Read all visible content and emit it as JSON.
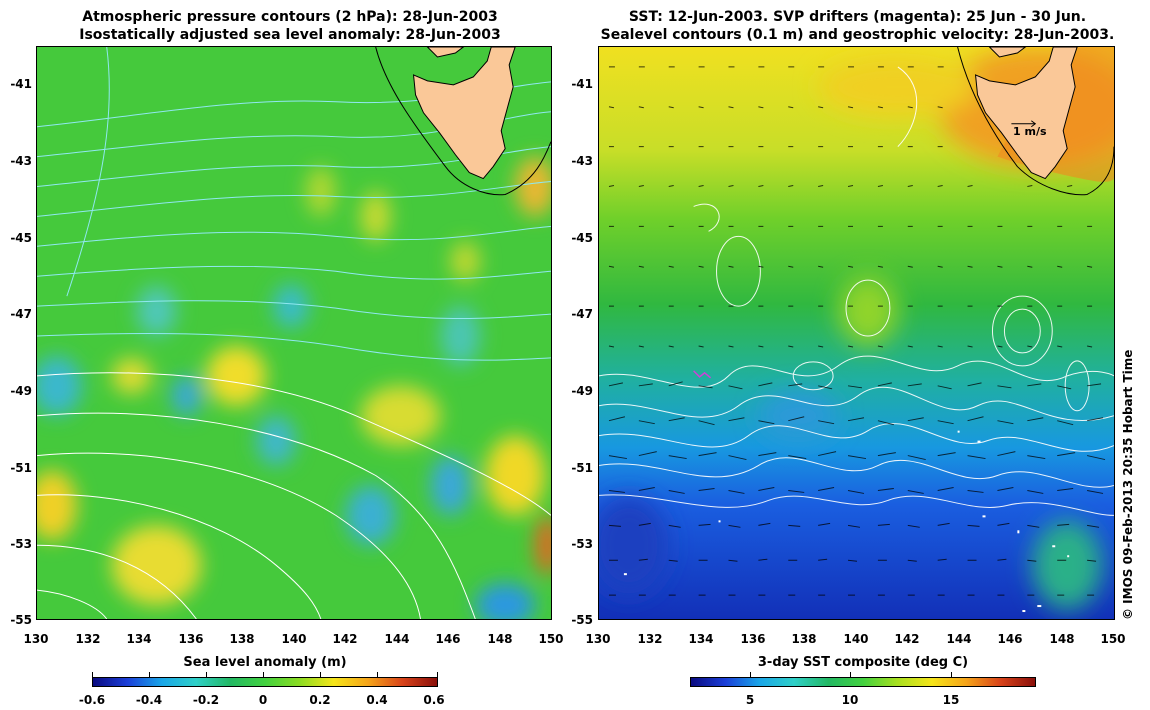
{
  "left_panel": {
    "title_line1": "Atmospheric pressure contours (2 hPa): 28-Jun-2003",
    "title_line2": "Isostatically adjusted sea level anomaly: 28-Jun-2003",
    "colorbar_title": "Sea level anomaly (m)",
    "colorbar_ticks": [
      "-0.6",
      "-0.4",
      "-0.2",
      "0",
      "0.2",
      "0.4",
      "0.6"
    ]
  },
  "right_panel": {
    "title_line1": "SST: 12-Jun-2003. SVP drifters (magenta): 25 Jun - 30 Jun.",
    "title_line2": "Sealevel contours (0.1 m) and geostrophic velocity: 28-Jun-2003.",
    "colorbar_title": "3-day SST composite (deg C)",
    "colorbar_ticks": [
      "5",
      "10",
      "15"
    ],
    "scale_label": "1 m/s"
  },
  "axes": {
    "y_ticks": [
      "-41",
      "-43",
      "-45",
      "-47",
      "-49",
      "-51",
      "-53",
      "-55"
    ],
    "x_ticks": [
      "130",
      "132",
      "134",
      "136",
      "138",
      "140",
      "142",
      "144",
      "146",
      "148",
      "150"
    ],
    "lon_range": [
      130,
      150
    ],
    "lat_range": [
      -55,
      -40.5
    ]
  },
  "credit": "© IMOS 09-Feb-2013 20:35 Hobart Time",
  "colors": {
    "land": "#fac898",
    "pressure_contour": "#8fe8f0",
    "sealevel_contour": "#ffffff",
    "coast": "#000000"
  }
}
